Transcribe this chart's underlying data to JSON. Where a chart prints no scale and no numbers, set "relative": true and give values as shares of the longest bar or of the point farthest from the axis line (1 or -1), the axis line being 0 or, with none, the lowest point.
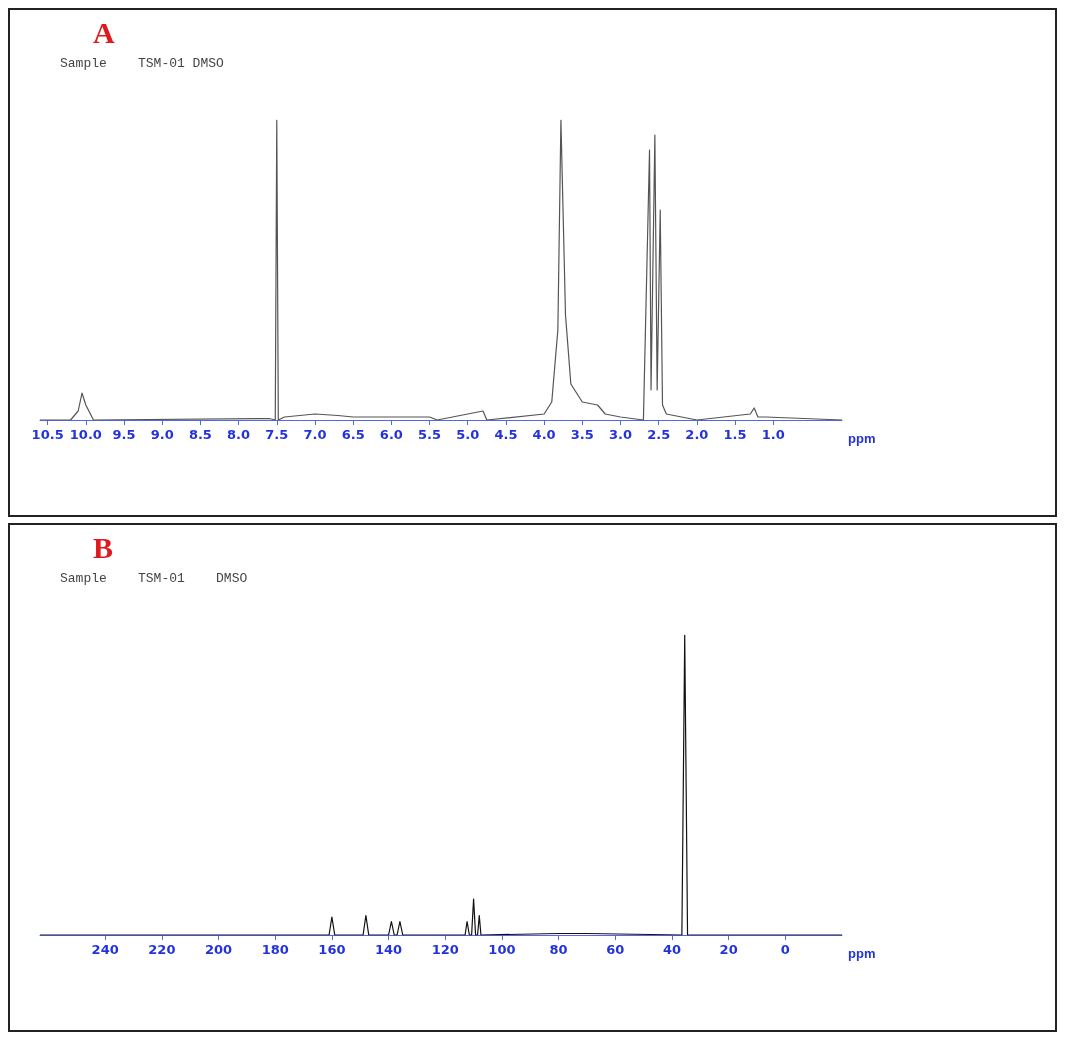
{
  "chart_data": [
    {
      "type": "line",
      "title": "A",
      "subtitle": "Sample    TSM-01 DMSO",
      "xlabel": "ppm",
      "relative": true,
      "marker": "none",
      "color": "#555555",
      "xlim": [
        10.6,
        0.1
      ],
      "xticks": [
        {
          "value": 10.5,
          "label": "10.5"
        },
        {
          "value": 10,
          "label": "10.0"
        },
        {
          "value": 9.5,
          "label": "9.5"
        },
        {
          "value": 9,
          "label": "9.0"
        },
        {
          "value": 8.5,
          "label": "8.5"
        },
        {
          "value": 8,
          "label": "8.0"
        },
        {
          "value": 7.5,
          "label": "7.5"
        },
        {
          "value": 7,
          "label": "7.0"
        },
        {
          "value": 6.5,
          "label": "6.5"
        },
        {
          "value": 6,
          "label": "6.0"
        },
        {
          "value": 5.5,
          "label": "5.5"
        },
        {
          "value": 5,
          "label": "5.0"
        },
        {
          "value": 4.5,
          "label": "4.5"
        },
        {
          "value": 4,
          "label": "4.0"
        },
        {
          "value": 3.5,
          "label": "3.5"
        },
        {
          "value": 3,
          "label": "3.0"
        },
        {
          "value": 2.5,
          "label": "2.5"
        },
        {
          "value": 2,
          "label": "2.0"
        },
        {
          "value": 1.5,
          "label": "1.5"
        },
        {
          "value": 1,
          "label": "1.0"
        }
      ],
      "x": [
        10.6,
        10.2,
        10.1,
        10.05,
        10.0,
        9.9,
        7.6,
        7.52,
        7.5,
        7.48,
        7.4,
        7.0,
        6.7,
        6.5,
        5.5,
        5.4,
        4.8,
        4.75,
        4.0,
        3.9,
        3.82,
        3.78,
        3.72,
        3.65,
        3.5,
        3.3,
        3.2,
        3.0,
        2.7,
        2.62,
        2.6,
        2.55,
        2.52,
        2.48,
        2.45,
        2.4,
        2.0,
        1.3,
        1.25,
        1.2,
        1.1,
        0.1
      ],
      "values": [
        0,
        0,
        0.03,
        0.09,
        0.05,
        0,
        0.005,
        0,
        1,
        0,
        0.01,
        0.02,
        0.015,
        0.01,
        0.01,
        0,
        0.03,
        0,
        0.02,
        0.06,
        0.3,
        1,
        0.35,
        0.12,
        0.06,
        0.05,
        0.02,
        0.01,
        0,
        0.9,
        0.1,
        0.95,
        0.1,
        0.7,
        0.05,
        0.02,
        0,
        0.02,
        0.04,
        0.01,
        0.01,
        0
      ]
    },
    {
      "type": "line",
      "title": "B",
      "subtitle": "Sample    TSM-01    DMSO",
      "xlabel": "ppm",
      "relative": true,
      "marker": "none",
      "color": "#111111",
      "xlim": [
        263,
        -20
      ],
      "xticks": [
        240,
        220,
        200,
        180,
        160,
        140,
        120,
        100,
        80,
        60,
        40,
        20,
        0
      ],
      "x": [
        263,
        200,
        161,
        160,
        159,
        149,
        148,
        147,
        140,
        139,
        138,
        137,
        136,
        135,
        113,
        112.3,
        111.5,
        110.7,
        110,
        109.3,
        108.6,
        108,
        107.4,
        80,
        70,
        36.5,
        35.5,
        34.5,
        -20
      ],
      "values": [
        0,
        0,
        0,
        0.06,
        0,
        0,
        0.065,
        0,
        0,
        0.045,
        0,
        0,
        0.045,
        0,
        0,
        0.045,
        0,
        0,
        0.12,
        0,
        0,
        0.065,
        0,
        0.005,
        0.005,
        0,
        1,
        0,
        0
      ]
    }
  ]
}
